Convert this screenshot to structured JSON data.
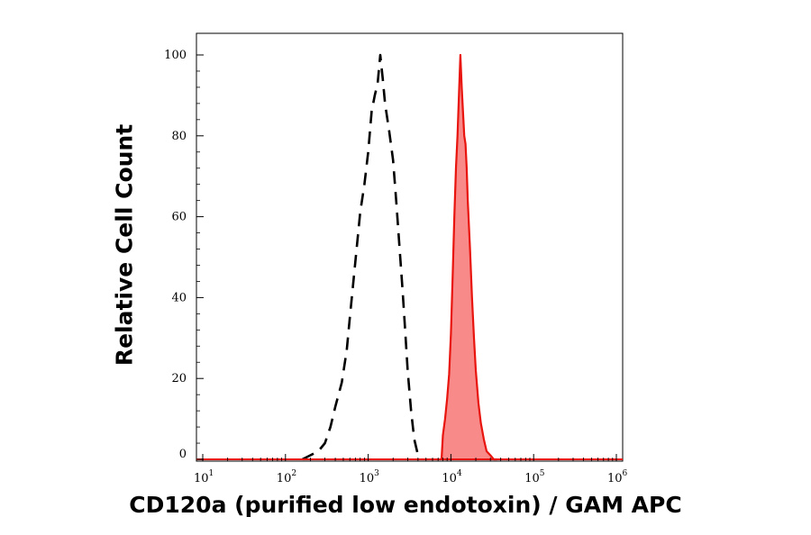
{
  "chart_data": {
    "type": "area",
    "xlabel": "CD120a (purified low endotoxin) / GAM APC",
    "ylabel": "Relative Cell Count",
    "x_scale": "log",
    "xlim": [
      10,
      1000000
    ],
    "ylim": [
      0,
      100
    ],
    "x_ticks": [
      10,
      100,
      1000,
      10000,
      100000,
      1000000
    ],
    "x_tick_labels": [
      {
        "base": "10",
        "exp": "1"
      },
      {
        "base": "10",
        "exp": "2"
      },
      {
        "base": "10",
        "exp": "3"
      },
      {
        "base": "10",
        "exp": "4"
      },
      {
        "base": "10",
        "exp": "5"
      },
      {
        "base": "10",
        "exp": "6"
      }
    ],
    "y_ticks": [
      0,
      20,
      40,
      60,
      80,
      100
    ],
    "y_tick_labels": [
      "0",
      "20",
      "40",
      "60",
      "80",
      "100"
    ],
    "grid": false,
    "legend": "none",
    "series": [
      {
        "style": "dashed",
        "color": "#000000",
        "filled": false,
        "x": [
          160,
          200,
          250,
          300,
          350,
          400,
          480,
          550,
          600,
          700,
          800,
          900,
          1000,
          1100,
          1200,
          1300,
          1400,
          1500,
          1600,
          1800,
          2000,
          2200,
          2400,
          2600,
          2800,
          3000,
          3300,
          3600,
          4000,
          4400
        ],
        "y": [
          0,
          1,
          2,
          4,
          8,
          13,
          19,
          27,
          35,
          49,
          61,
          68,
          76,
          86,
          90,
          93,
          100,
          94,
          88,
          81,
          74,
          63,
          52,
          42,
          32,
          22,
          12,
          5,
          1,
          0
        ]
      },
      {
        "style": "solid",
        "color": "#e8140d",
        "filled": true,
        "fill_color": "#f88a8a",
        "x": [
          7700,
          8000,
          8500,
          9000,
          9500,
          10000,
          10500,
          11000,
          11500,
          12000,
          12500,
          13000,
          13500,
          14000,
          14500,
          15000,
          15500,
          16000,
          17000,
          18000,
          19000,
          20000,
          21500,
          23000,
          25000,
          27000,
          30000,
          33000,
          36000
        ],
        "y": [
          0,
          6,
          10,
          15,
          21,
          31,
          45,
          60,
          72,
          80,
          90,
          100,
          92,
          86,
          80,
          78,
          72,
          64,
          52,
          40,
          30,
          22,
          14,
          9,
          5,
          2,
          1,
          0,
          0
        ]
      }
    ]
  }
}
